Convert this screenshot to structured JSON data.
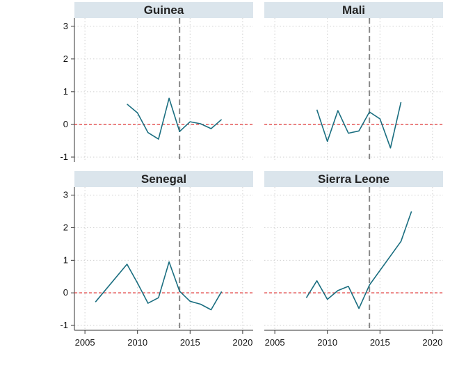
{
  "chart_data": {
    "type": "line",
    "layout": "2x2 small multiples",
    "x_ticks": [
      2005,
      2010,
      2015,
      2020
    ],
    "y_ticks": [
      3,
      2,
      1,
      0,
      -1
    ],
    "xlim": [
      2004,
      2021
    ],
    "ylim": [
      -1.15,
      3.25
    ],
    "reference_hline": 0,
    "reference_vline": 2014,
    "colors": {
      "series": "#1a6e80",
      "hline": "#e03030",
      "vline": "#888888",
      "strip": "#dbe5ec",
      "grid": "#cfcfcf"
    },
    "panels": [
      {
        "title": "Guinea",
        "x": [
          2009,
          2010,
          2011,
          2012,
          2013,
          2014,
          2015,
          2016,
          2017,
          2018
        ],
        "y": [
          0.62,
          0.35,
          -0.25,
          -0.45,
          0.8,
          -0.22,
          0.08,
          0.02,
          -0.13,
          0.15
        ]
      },
      {
        "title": "Mali",
        "x": [
          2009,
          2010,
          2011,
          2012,
          2013,
          2014,
          2015,
          2016,
          2017
        ],
        "y": [
          0.45,
          -0.52,
          0.42,
          -0.27,
          -0.2,
          0.38,
          0.17,
          -0.72,
          0.68
        ]
      },
      {
        "title": "Senegal",
        "x": [
          2006,
          2009,
          2010,
          2011,
          2012,
          2013,
          2014,
          2015,
          2016,
          2017,
          2018
        ],
        "y": [
          -0.28,
          0.88,
          0.3,
          -0.32,
          -0.15,
          0.95,
          0.05,
          -0.26,
          -0.35,
          -0.52,
          0.04
        ]
      },
      {
        "title": "Sierra Leone",
        "x": [
          2008,
          2009,
          2010,
          2011,
          2012,
          2013,
          2014,
          2017,
          2018
        ],
        "y": [
          -0.15,
          0.37,
          -0.2,
          0.07,
          0.2,
          -0.48,
          0.24,
          1.58,
          2.5
        ]
      }
    ]
  }
}
